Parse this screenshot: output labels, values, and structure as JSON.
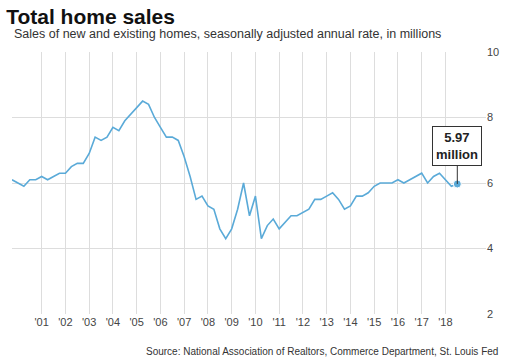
{
  "chart_data": {
    "type": "line",
    "title": "Total home sales",
    "subtitle": "Sales of new and existing homes, seasonally adjusted annual rate, in millions",
    "source": "Source: National Association of Realtors, Commerce Department, St. Louis Fed",
    "annotations": [
      {
        "text": "5.97 million"
      }
    ],
    "categories": [
      null,
      null,
      null,
      null,
      null,
      "'01",
      null,
      null,
      null,
      "'02",
      null,
      null,
      null,
      "'03",
      null,
      null,
      null,
      "'04",
      null,
      null,
      null,
      "'05",
      null,
      null,
      null,
      "'06",
      null,
      null,
      null,
      "'07",
      null,
      null,
      null,
      "'08",
      null,
      null,
      null,
      "'09",
      null,
      null,
      null,
      "'10",
      null,
      null,
      null,
      "'11",
      null,
      null,
      null,
      "'12",
      null,
      null,
      null,
      "'13",
      null,
      null,
      null,
      "'14",
      null,
      null,
      null,
      "'15",
      null,
      null,
      null,
      "'16",
      null,
      null,
      null,
      "'17",
      null,
      null,
      null,
      "'18",
      null,
      null
    ],
    "values": [
      6.1,
      6.0,
      5.9,
      6.1,
      6.1,
      6.2,
      6.1,
      6.2,
      6.3,
      6.3,
      6.5,
      6.6,
      6.6,
      6.9,
      7.4,
      7.3,
      7.4,
      7.7,
      7.6,
      7.9,
      8.1,
      8.3,
      8.5,
      8.4,
      8.0,
      7.7,
      7.4,
      7.4,
      7.3,
      6.8,
      6.2,
      5.5,
      5.6,
      5.3,
      5.2,
      4.6,
      4.3,
      4.6,
      5.2,
      6.0,
      5.0,
      5.6,
      4.3,
      4.7,
      4.9,
      4.6,
      4.8,
      5.0,
      5.0,
      5.1,
      5.2,
      5.5,
      5.5,
      5.6,
      5.7,
      5.5,
      5.2,
      5.3,
      5.6,
      5.6,
      5.7,
      5.9,
      6.0,
      6.0,
      6.0,
      6.1,
      6.0,
      6.1,
      6.2,
      6.3,
      6.0,
      6.2,
      6.3,
      6.1,
      5.9,
      5.97
    ],
    "color": "#5aaad8",
    "marker": "last",
    "ylim": [
      2,
      10
    ],
    "yticks": [
      2,
      4,
      6,
      8,
      10
    ],
    "grid": true
  }
}
